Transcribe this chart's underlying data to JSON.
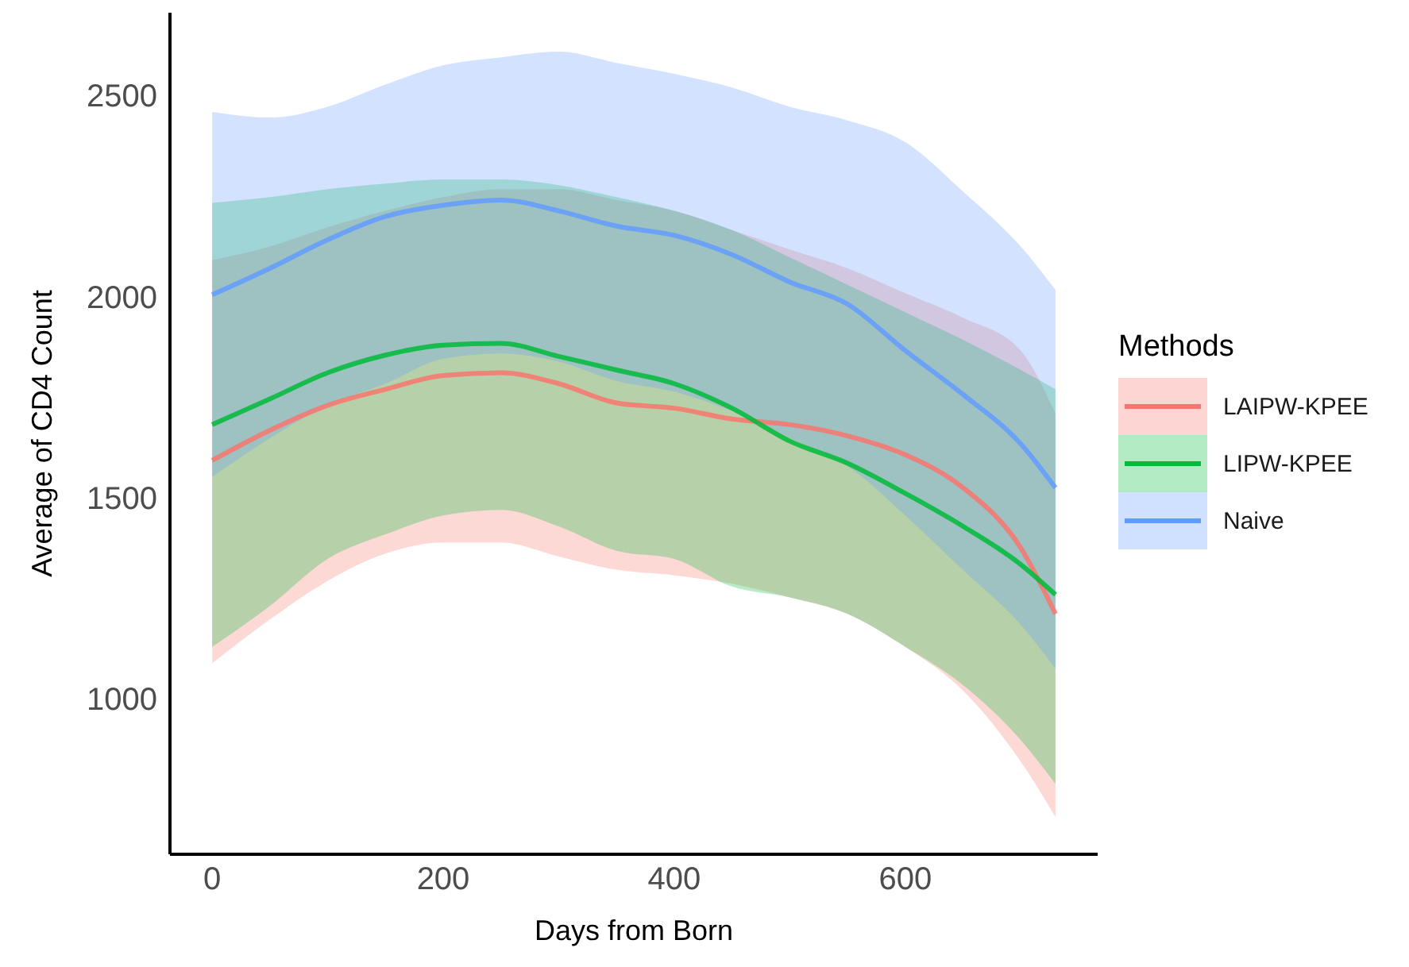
{
  "chart_data": {
    "type": "line",
    "xlabel": "Days from Born",
    "ylabel": "Average of CD4 Count",
    "legend_title": "Methods",
    "legend": "right",
    "grid": false,
    "x": [
      0,
      50,
      100,
      150,
      200,
      250,
      300,
      350,
      400,
      450,
      500,
      550,
      600,
      650,
      700,
      730
    ],
    "xlim": [
      -36.5,
      766.5
    ],
    "xticks": [
      0,
      200,
      400,
      600
    ],
    "ylim": [
      612,
      2706
    ],
    "yticks": [
      1000,
      1500,
      2000,
      2500
    ],
    "series": [
      {
        "name": "LAIPW-KPEE",
        "color": "#f8766d",
        "values": [
          1592,
          1667,
          1729,
          1769,
          1803,
          1810,
          1783,
          1735,
          1722,
          1695,
          1681,
          1653,
          1606,
          1524,
          1374,
          1210
        ],
        "lower": [
          1087,
          1196,
          1292,
          1360,
          1388,
          1388,
          1353,
          1320,
          1306,
          1285,
          1251,
          1210,
          1128,
          1019,
          842,
          705
        ],
        "upper": [
          2090,
          2124,
          2172,
          2213,
          2247,
          2267,
          2267,
          2240,
          2213,
          2165,
          2117,
          2070,
          2008,
          1947,
          1865,
          1708
        ]
      },
      {
        "name": "LIPW-KPEE",
        "color": "#00ba38",
        "values": [
          1681,
          1745,
          1810,
          1854,
          1879,
          1883,
          1851,
          1817,
          1783,
          1722,
          1640,
          1585,
          1510,
          1428,
          1333,
          1258
        ],
        "lower": [
          1128,
          1230,
          1347,
          1408,
          1455,
          1469,
          1428,
          1367,
          1347,
          1278,
          1251,
          1210,
          1128,
          1033,
          896,
          787
        ],
        "upper": [
          2233,
          2247,
          2267,
          2281,
          2291,
          2291,
          2277,
          2247,
          2213,
          2165,
          2097,
          2029,
          1961,
          1892,
          1817,
          1769
        ]
      },
      {
        "name": "Naive",
        "color": "#619cff",
        "values": [
          2004,
          2070,
          2141,
          2199,
          2227,
          2240,
          2213,
          2175,
          2152,
          2104,
          2036,
          1981,
          1865,
          1756,
          1633,
          1524
        ],
        "lower": [
          1551,
          1647,
          1729,
          1783,
          1845,
          1858,
          1838,
          1790,
          1763,
          1715,
          1647,
          1578,
          1455,
          1319,
          1183,
          1074
        ],
        "upper": [
          2459,
          2445,
          2472,
          2527,
          2575,
          2595,
          2609,
          2581,
          2554,
          2520,
          2472,
          2438,
          2384,
          2261,
          2124,
          2016
        ]
      }
    ]
  }
}
